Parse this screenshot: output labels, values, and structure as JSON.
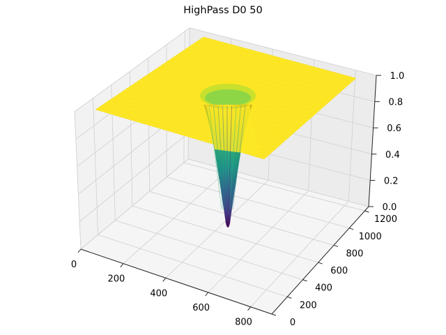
{
  "chart_data": {
    "type": "surface",
    "title": "HighPass D0 50",
    "colormap": "viridis",
    "x_ticks": [
      "0",
      "200",
      "400",
      "600",
      "800"
    ],
    "y_ticks": [
      "0",
      "200",
      "400",
      "600",
      "800",
      "1000",
      "1200"
    ],
    "z_ticks": [
      "0.0",
      "0.2",
      "0.4",
      "0.6",
      "0.8",
      "1.0"
    ],
    "xlim": [
      0,
      900
    ],
    "ylim": [
      0,
      1250
    ],
    "zlim": [
      0,
      1
    ],
    "grid": true,
    "surface": {
      "function": "1 - exp(-D^2 / (2 * D0^2))",
      "D0": 50,
      "center": [
        200,
        640
      ],
      "plateau_value": 1.0,
      "minimum_value": 0.0
    }
  }
}
